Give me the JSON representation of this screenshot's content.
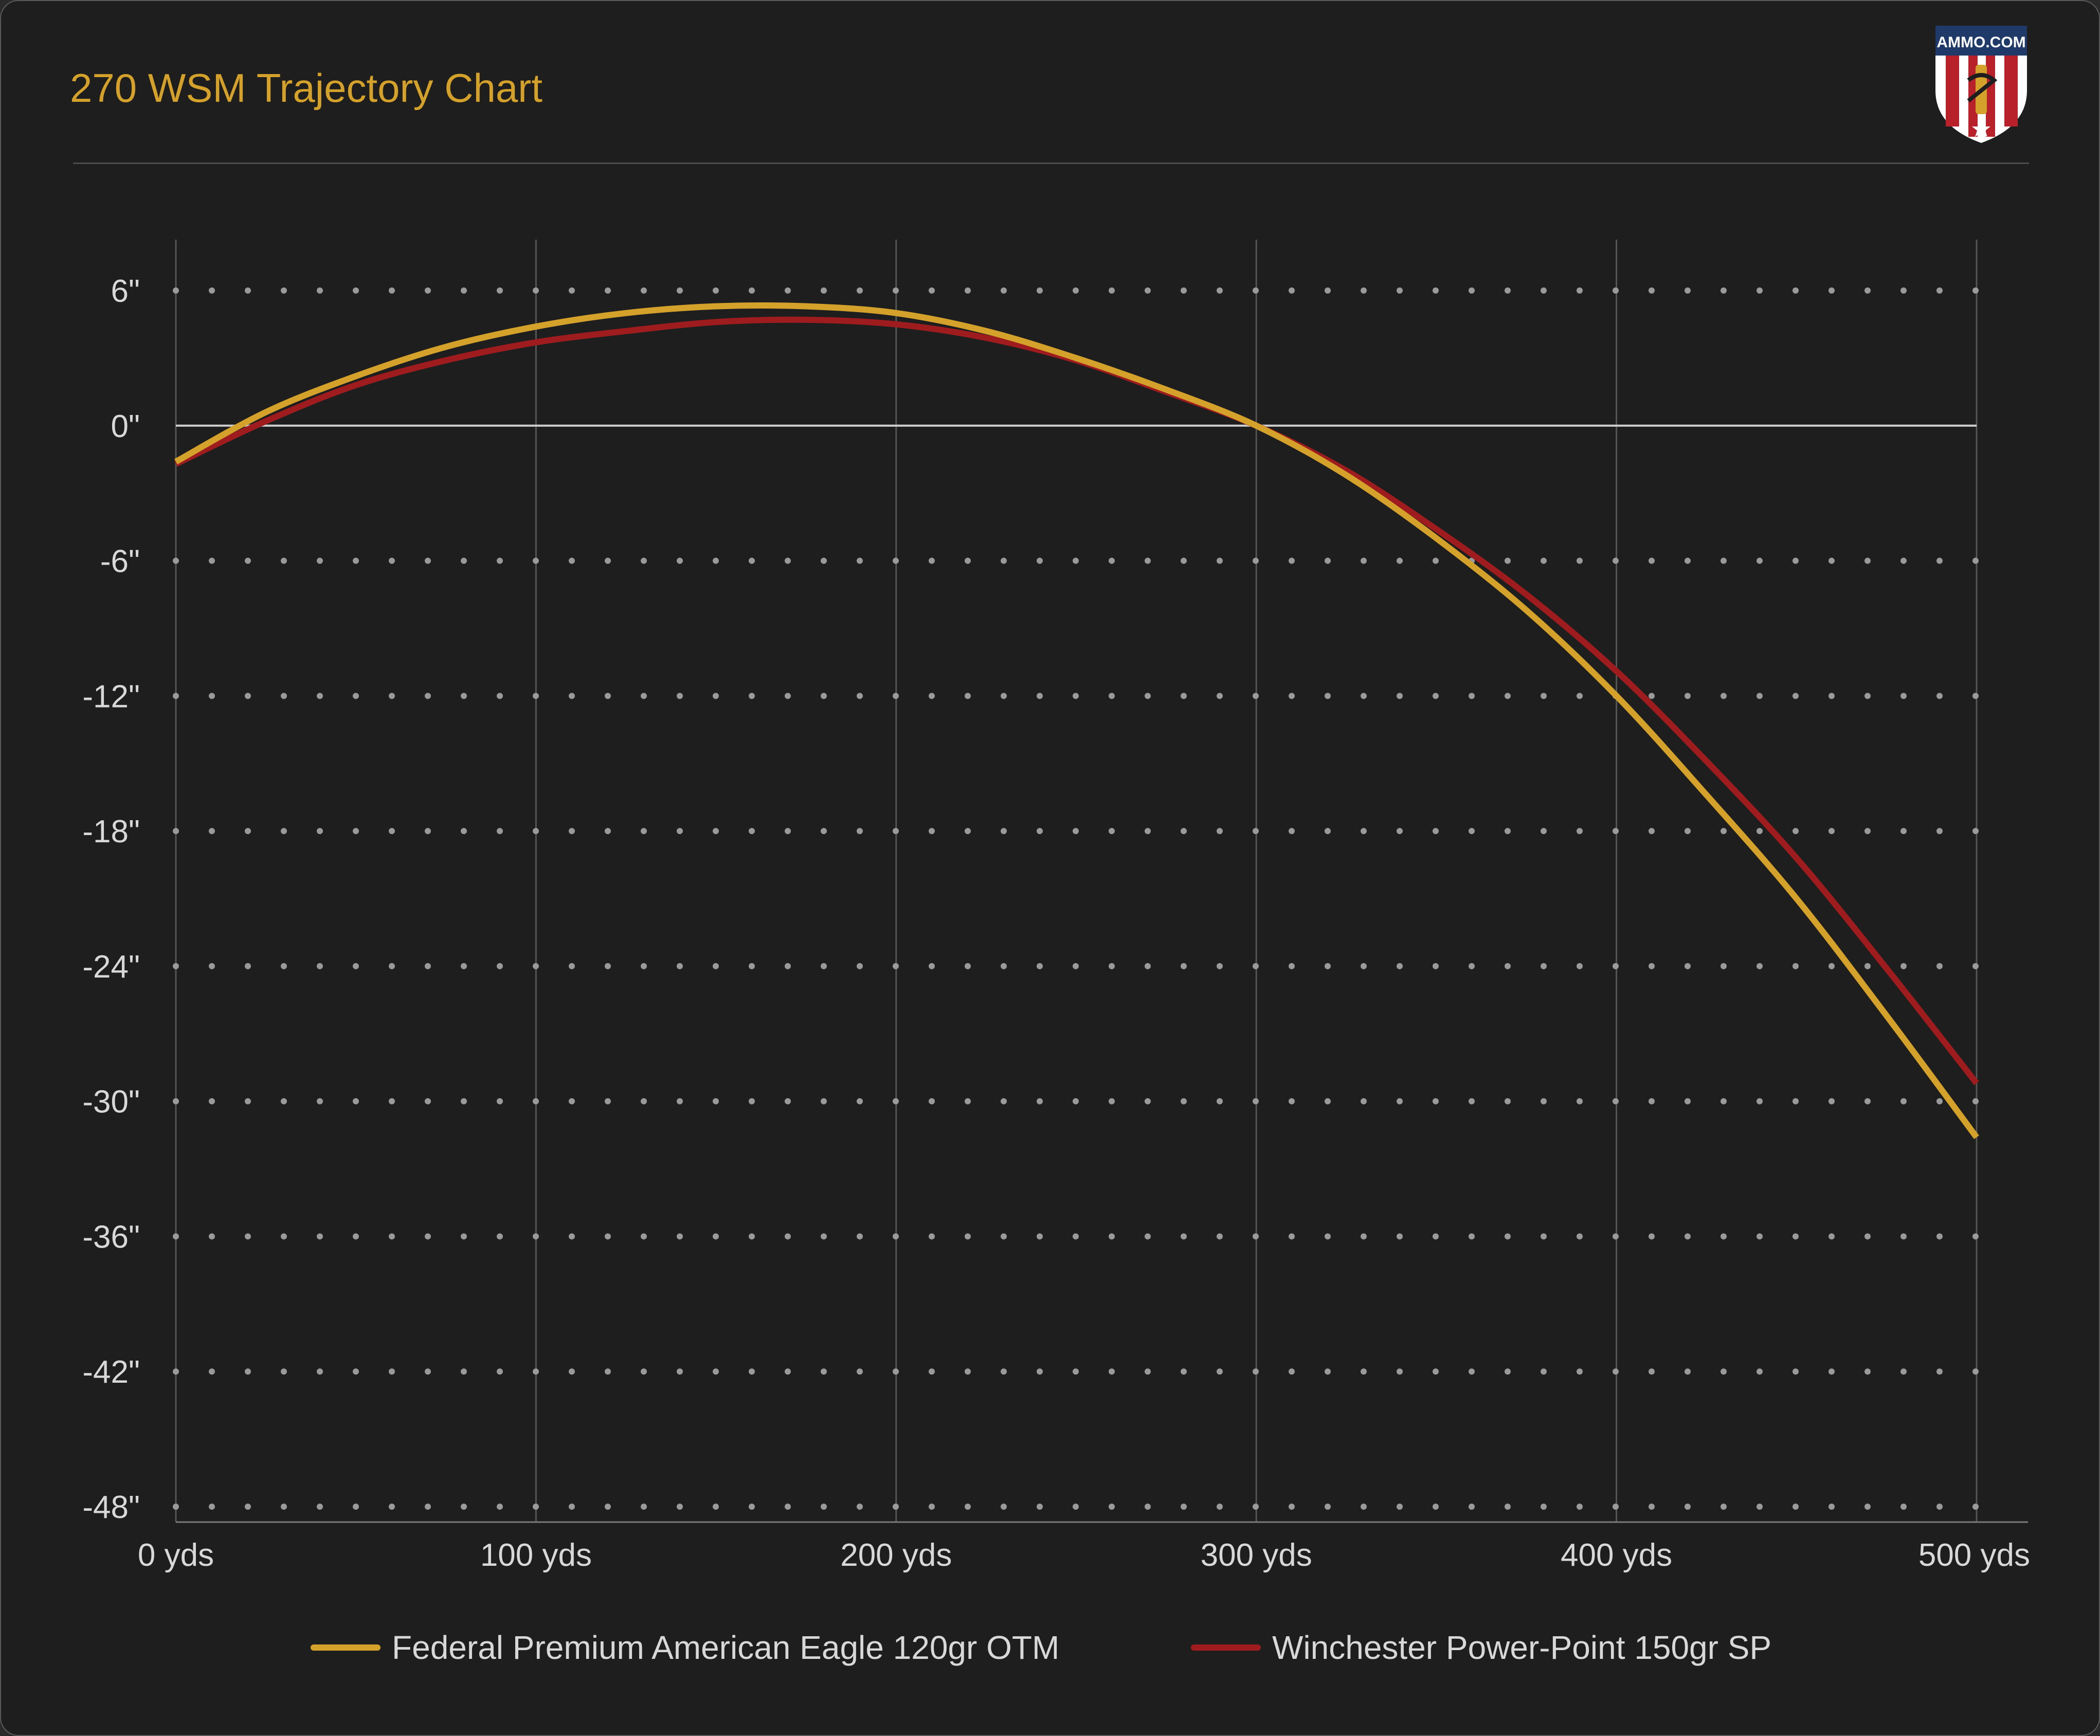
{
  "header": {
    "title": "270 WSM Trajectory Chart",
    "logo_text": "AMMO.COM"
  },
  "colors": {
    "background": "#1e1e1e",
    "title": "#d4a12a",
    "grid_vertical": "#555555",
    "grid_dots": "#9a9a9a",
    "zero_line": "#cfcfcf",
    "text": "#d8d8d8"
  },
  "chart_data": {
    "type": "line",
    "title": "270 WSM Trajectory Chart",
    "xlabel": "",
    "ylabel": "",
    "x_ticks": [
      0,
      100,
      200,
      300,
      400,
      500
    ],
    "x_tick_labels": [
      "0 yds",
      "100 yds",
      "200 yds",
      "300 yds",
      "400 yds",
      "500 yds"
    ],
    "y_ticks": [
      6,
      0,
      -6,
      -12,
      -18,
      -24,
      -30,
      -36,
      -42,
      -48
    ],
    "y_tick_labels": [
      "6\"",
      "0\"",
      "-6\"",
      "-12\"",
      "-18\"",
      "-24\"",
      "-30\"",
      "-36\"",
      "-42\"",
      "-48\""
    ],
    "xlim": [
      0,
      500
    ],
    "ylim": [
      -48,
      6
    ],
    "grid": "vertical lines at x ticks; dotted horizontal lines at y ticks",
    "legend_position": "bottom",
    "x": [
      0,
      25,
      50,
      75,
      100,
      125,
      150,
      175,
      200,
      225,
      250,
      275,
      300,
      325,
      350,
      375,
      400,
      425,
      450,
      475,
      500
    ],
    "series": [
      {
        "name": "Federal Premium American Eagle 120gr OTM",
        "color": "#d4a12a",
        "values": [
          -1.6,
          0.6,
          2.2,
          3.5,
          4.4,
          5.0,
          5.3,
          5.3,
          5.0,
          4.2,
          3.0,
          1.6,
          0.0,
          -2.2,
          -5.0,
          -8.2,
          -12.0,
          -16.4,
          -21.0,
          -26.2,
          -31.6
        ]
      },
      {
        "name": "Winchester Power-Point 150gr SP",
        "color": "#9e1b1e",
        "values": [
          -1.7,
          0.2,
          1.8,
          2.9,
          3.7,
          4.2,
          4.6,
          4.7,
          4.5,
          3.9,
          2.9,
          1.5,
          0.0,
          -2.0,
          -4.6,
          -7.5,
          -10.9,
          -14.9,
          -19.2,
          -24.1,
          -29.2
        ]
      }
    ]
  }
}
